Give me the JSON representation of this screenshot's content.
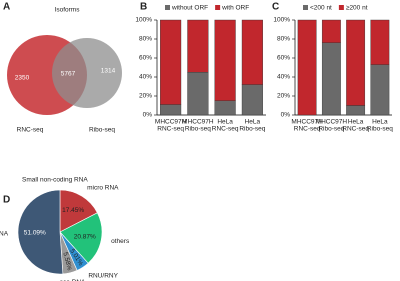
{
  "chart_data": [
    {
      "type": "venn",
      "panel": "A",
      "title": "Isoforms",
      "sets": [
        {
          "name": "RNC-seq",
          "color": "#c9393d"
        },
        {
          "name": "Ribo-seq",
          "color": "#8e8e8e"
        }
      ],
      "values": [
        2350,
        5767,
        1314
      ]
    },
    {
      "type": "stacked_bar",
      "panel": "B",
      "categories": [
        [
          "MHCC97H",
          "RNC-seq"
        ],
        [
          "MHCC97H",
          "Ribo-seq"
        ],
        [
          "HeLa",
          "RNC-seq"
        ],
        [
          "HeLa",
          "Ribo-seq"
        ]
      ],
      "series": [
        {
          "name": "without ORF",
          "color": "#6a6a6a",
          "values": [
            11,
            45,
            15,
            32
          ]
        },
        {
          "name": "with ORF",
          "color": "#c1272d",
          "values": [
            89,
            55,
            85,
            68
          ]
        }
      ],
      "ylim": [
        0,
        100
      ],
      "yticks": [
        {
          "value": 0,
          "label": "0%"
        },
        {
          "value": 20,
          "label": "20%"
        },
        {
          "value": 40,
          "label": "40%"
        },
        {
          "value": 60,
          "label": "60%"
        },
        {
          "value": 80,
          "label": "80%"
        },
        {
          "value": 100,
          "label": "100%"
        }
      ]
    },
    {
      "type": "stacked_bar",
      "panel": "C",
      "categories": [
        [
          "MHCC97H",
          "RNC-seq"
        ],
        [
          "MHCC97H",
          "Ribo-seq"
        ],
        [
          "HeLa",
          "RNC-seq"
        ],
        [
          "HeLa",
          "Ribo-seq"
        ]
      ],
      "series": [
        {
          "name": "<200 nt",
          "color": "#6a6a6a",
          "values": [
            0,
            76,
            10,
            53
          ]
        },
        {
          "name": "≥200 nt",
          "color": "#c1272d",
          "values": [
            100,
            24,
            90,
            47
          ]
        }
      ],
      "ylim": [
        0,
        100
      ],
      "yticks": [
        {
          "value": 0,
          "label": "0%"
        },
        {
          "value": 20,
          "label": "20%"
        },
        {
          "value": 40,
          "label": "40%"
        },
        {
          "value": 60,
          "label": "60%"
        },
        {
          "value": 80,
          "label": "80%"
        },
        {
          "value": 100,
          "label": "100%"
        }
      ]
    },
    {
      "type": "pie",
      "panel": "D",
      "title": "Small non-coding RNA",
      "categories": [
        "micro RNA",
        "others",
        "RNU/RNY",
        "sca RNA",
        "sno RNA"
      ],
      "values": [
        17.45,
        20.87,
        5.01,
        5.58,
        51.09
      ],
      "value_labels": [
        "17.45%",
        "20.87%",
        "5.01%",
        "5.58%",
        "51.09%"
      ],
      "colors": [
        "#c0393b",
        "#22c27a",
        "#2f8fd0",
        "#9a9a9a",
        "#3e5876"
      ]
    }
  ]
}
